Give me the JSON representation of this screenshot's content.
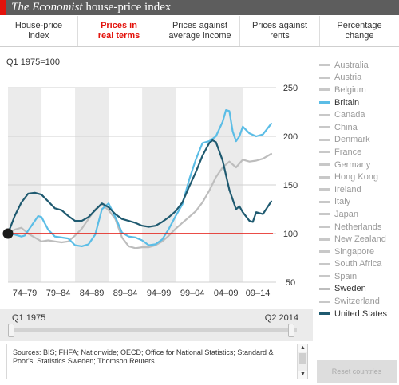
{
  "header": {
    "title_italic": "The Economist",
    "title_rest": " house-price index"
  },
  "tabs": [
    {
      "line1": "House-price",
      "line2": "index"
    },
    {
      "line1": "Prices in",
      "line2": "real terms"
    },
    {
      "line1": "Prices against",
      "line2": "average income"
    },
    {
      "line1": "Prices against",
      "line2": "rents"
    },
    {
      "line1": "Percentage",
      "line2": "change"
    }
  ],
  "active_tab": 1,
  "baseline_label": "Q1 1975=100",
  "legend": [
    "Australia",
    "Austria",
    "Belgium",
    "Britain",
    "Canada",
    "China",
    "Denmark",
    "France",
    "Germany",
    "Hong Kong",
    "Ireland",
    "Italy",
    "Japan",
    "Netherlands",
    "New Zealand",
    "Singapore",
    "South Africa",
    "Spain",
    "Sweden",
    "Switzerland",
    "United States"
  ],
  "highlighted": {
    "Britain": "#5bbde6",
    "Sweden": "#bdbdbd",
    "United States": "#1f5a70"
  },
  "slider": {
    "start_label": "Q1 1975",
    "end_label": "Q2 2014"
  },
  "sources": "Sources: BIS; FHFA; Nationwide; OECD; Office for National Statistics; Standard & Poor's; Statistics Sweden; Thomson Reuters",
  "reset_label": "Reset countries",
  "chart_data": {
    "type": "line",
    "ylim": [
      50,
      250
    ],
    "xlim": [
      1975,
      2014.5
    ],
    "yticks": [
      50,
      100,
      150,
      200,
      250
    ],
    "xtick_labels": [
      "74–79",
      "79–84",
      "84–89",
      "89–94",
      "94–99",
      "99–04",
      "04–09",
      "09–14"
    ],
    "reference_line": 100,
    "reference_color": "#e3120b",
    "series": [
      {
        "name": "Britain",
        "color": "#5bbde6",
        "x": [
          1975,
          1976,
          1977,
          1977.5,
          1978.5,
          1979.5,
          1980,
          1981,
          1982,
          1983,
          1984,
          1985,
          1986,
          1987,
          1988,
          1989,
          1990,
          1991,
          1992,
          1993,
          1994,
          1995,
          1996,
          1997,
          1998,
          1999,
          2000,
          2001,
          2002,
          2003,
          2004,
          2005,
          2006,
          2007,
          2007.5,
          2008,
          2008.5,
          2009,
          2009.5,
          2010,
          2011,
          2012,
          2013,
          2014.25
        ],
        "y": [
          100,
          99,
          97,
          98,
          108,
          118,
          117,
          104,
          97,
          96,
          95,
          88,
          87,
          89,
          99,
          125,
          131,
          117,
          101,
          97,
          96,
          93,
          88,
          89,
          94,
          105,
          118,
          130,
          155,
          176,
          193,
          195,
          200,
          215,
          227,
          226,
          205,
          195,
          200,
          210,
          203,
          200,
          202,
          213
        ]
      },
      {
        "name": "United States",
        "color": "#1f5a70",
        "x": [
          1975,
          1976,
          1977,
          1978,
          1979,
          1980,
          1981,
          1982,
          1983,
          1984,
          1985,
          1986,
          1987,
          1988,
          1989,
          1990,
          1991,
          1992,
          1993,
          1994,
          1995,
          1996,
          1997,
          1998,
          1999,
          2000,
          2001,
          2002,
          2003,
          2004,
          2005,
          2005.5,
          2006,
          2007,
          2008,
          2009,
          2009.5,
          2010,
          2011,
          2011.5,
          2012,
          2013,
          2014.25
        ],
        "y": [
          100,
          118,
          132,
          141,
          142,
          140,
          133,
          126,
          124,
          118,
          113,
          113,
          117,
          124,
          131,
          127,
          120,
          115,
          113,
          111,
          108,
          107,
          108,
          112,
          117,
          123,
          132,
          148,
          163,
          180,
          193,
          196,
          194,
          175,
          145,
          125,
          128,
          122,
          113,
          112,
          122,
          120,
          133
        ]
      },
      {
        "name": "Sweden",
        "color": "#bdbdbd",
        "x": [
          1975,
          1976,
          1977,
          1978,
          1979,
          1980,
          1981,
          1982,
          1983,
          1984,
          1985,
          1986,
          1987,
          1988,
          1989,
          1990,
          1991,
          1992,
          1993,
          1994,
          1995,
          1996,
          1997,
          1998,
          1999,
          2000,
          2001,
          2002,
          2003,
          2004,
          2005,
          2006,
          2007,
          2008,
          2009,
          2010,
          2011,
          2012,
          2013,
          2014.25
        ],
        "y": [
          100,
          104,
          106,
          100,
          96,
          92,
          93,
          92,
          91,
          92,
          98,
          105,
          115,
          125,
          130,
          124,
          115,
          96,
          87,
          85,
          86,
          86,
          88,
          92,
          98,
          105,
          111,
          117,
          123,
          132,
          144,
          158,
          168,
          174,
          168,
          176,
          174,
          175,
          177,
          182
        ]
      }
    ]
  }
}
